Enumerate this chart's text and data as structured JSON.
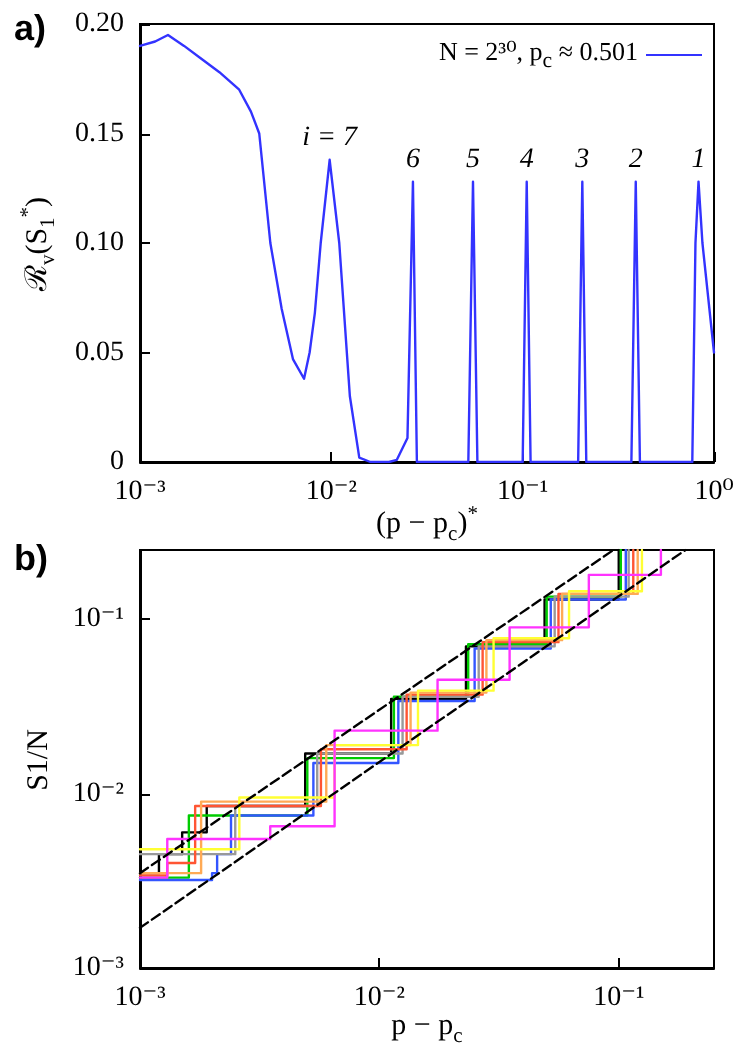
{
  "chart_data": [
    {
      "type": "line",
      "title": "a)",
      "xlabel": "(p − p$_{c}$)$^{*}$",
      "ylabel": "ℛ$_{v}$(S$_{1}$$^{*}$)",
      "log": "x",
      "legend": "top right",
      "xlim": [
        0.001,
        1
      ],
      "xticks": [
        {
          "value": 0.001,
          "label": "10⁻³"
        },
        {
          "value": 0.01,
          "label": "10⁻²"
        },
        {
          "value": 0.1,
          "label": "10⁻¹"
        },
        {
          "value": 1,
          "label": "10⁰"
        }
      ],
      "ylim": [
        0,
        0.2
      ],
      "yticks": [
        0,
        0.05,
        {
          "value": 0.1,
          "label": "0.10"
        },
        0.15,
        {
          "value": 0.2,
          "label": "0.20"
        }
      ],
      "annotations": [
        {
          "text": "i = 7",
          "x": 0.0098,
          "y": 0.138
        },
        {
          "text": "6",
          "x": 0.0267,
          "y": 0.128
        },
        {
          "text": "5",
          "x": 0.055,
          "y": 0.128
        },
        {
          "text": "4",
          "x": 0.105,
          "y": 0.128
        },
        {
          "text": "3",
          "x": 0.205,
          "y": 0.128
        },
        {
          "text": "2",
          "x": 0.39,
          "y": 0.128
        },
        {
          "text": "1",
          "x": 0.83,
          "y": 0.128
        }
      ],
      "series": [
        {
          "name": "N = 2³⁰, p$_{c}$ ≈ 0.501",
          "color": "#3333ff",
          "x": [
            0.001,
            0.0012,
            0.0014,
            0.0017,
            0.0021,
            0.0026,
            0.0033,
            0.0038,
            0.0042,
            0.0048,
            0.0055,
            0.0063,
            0.0072,
            0.0077,
            0.0082,
            0.0088,
            0.0098,
            0.011,
            0.0125,
            0.014,
            0.016,
            0.02,
            0.022,
            0.025,
            0.0267,
            0.028,
            0.052,
            0.055,
            0.058,
            0.1,
            0.105,
            0.11,
            0.195,
            0.205,
            0.215,
            0.37,
            0.39,
            0.41,
            0.77,
            0.8,
            0.83,
            0.87,
            1
          ],
          "values": [
            0.19,
            0.192,
            0.195,
            0.19,
            0.184,
            0.178,
            0.17,
            0.16,
            0.15,
            0.1,
            0.07,
            0.047,
            0.038,
            0.05,
            0.068,
            0.1,
            0.138,
            0.1,
            0.03,
            0.002,
            0,
            0,
            0.001,
            0.011,
            0.128,
            0,
            0,
            0.128,
            0,
            0,
            0.128,
            0,
            0,
            0.128,
            0,
            0,
            0.128,
            0,
            0,
            0.1,
            0.128,
            0.1,
            0.05
          ]
        }
      ]
    },
    {
      "type": "step",
      "title": "b)",
      "xlabel": "p − p$_{c}$",
      "ylabel": "S1/N",
      "log": "xy",
      "xlim": [
        0.001,
        0.25
      ],
      "xticks": [
        {
          "value": 0.001,
          "label": "10⁻³"
        },
        {
          "value": 0.01,
          "label": "10⁻²"
        },
        {
          "value": 0.1,
          "label": "10⁻¹"
        }
      ],
      "ylim": [
        0.001,
        0.25
      ],
      "yticks": [
        {
          "value": 0.001,
          "label": "10⁻³"
        },
        {
          "value": 0.01,
          "label": "10⁻²"
        },
        {
          "value": 0.1,
          "label": "10⁻¹"
        }
      ],
      "series": [
        {
          "color": "#000000",
          "x": [
            0.001,
            0.0012,
            0.0015,
            0.0019,
            0.0049,
            0.0112,
            0.023,
            0.049,
            0.1
          ],
          "values": [
            0.0035,
            0.0045,
            0.006,
            0.0085,
            0.017,
            0.035,
            0.07,
            0.13,
            0.25
          ]
        },
        {
          "color": "#00cc00",
          "x": [
            0.001,
            0.0016,
            0.005,
            0.0115,
            0.0235,
            0.05,
            0.102
          ],
          "values": [
            0.0033,
            0.0075,
            0.016,
            0.036,
            0.072,
            0.135,
            0.25
          ]
        },
        {
          "color": "#3355ff",
          "x": [
            0.001,
            0.002,
            0.0021,
            0.0024,
            0.0053,
            0.012,
            0.025,
            0.052,
            0.107
          ],
          "values": [
            0.0032,
            0.0035,
            0.0045,
            0.0075,
            0.015,
            0.034,
            0.068,
            0.13,
            0.25
          ]
        },
        {
          "color": "#999999",
          "x": [
            0.001,
            0.0025,
            0.0055,
            0.0125,
            0.026,
            0.054,
            0.11
          ],
          "values": [
            0.0045,
            0.0085,
            0.017,
            0.036,
            0.07,
            0.135,
            0.25
          ]
        },
        {
          "color": "#ff5533",
          "x": [
            0.001,
            0.0013,
            0.0017,
            0.0057,
            0.013,
            0.027,
            0.056,
            0.115
          ],
          "values": [
            0.0034,
            0.004,
            0.0085,
            0.018,
            0.037,
            0.074,
            0.14,
            0.25
          ]
        },
        {
          "color": "#ffaa55",
          "x": [
            0.001,
            0.0018,
            0.006,
            0.0135,
            0.028,
            0.058,
            0.12
          ],
          "values": [
            0.0035,
            0.009,
            0.019,
            0.038,
            0.076,
            0.14,
            0.25
          ]
        },
        {
          "color": "#ffff33",
          "x": [
            0.001,
            0.0026,
            0.0065,
            0.0145,
            0.03,
            0.062,
            0.125
          ],
          "values": [
            0.0048,
            0.0095,
            0.019,
            0.039,
            0.078,
            0.145,
            0.25
          ]
        },
        {
          "color": "#ff33ff",
          "x": [
            0.001,
            0.0013,
            0.0035,
            0.0065,
            0.0175,
            0.035,
            0.075,
            0.15
          ],
          "values": [
            0.0033,
            0.0055,
            0.0065,
            0.023,
            0.045,
            0.09,
            0.18,
            0.25
          ]
        },
        {
          "type": "line",
          "line_style": "dashed",
          "color": "#000000",
          "x": [
            0.001,
            0.095
          ],
          "values": [
            0.0035,
            0.25
          ]
        },
        {
          "type": "line",
          "line_style": "dashed",
          "color": "#000000",
          "x": [
            0.001,
            0.19
          ],
          "values": [
            0.0017,
            0.25
          ]
        }
      ]
    }
  ]
}
